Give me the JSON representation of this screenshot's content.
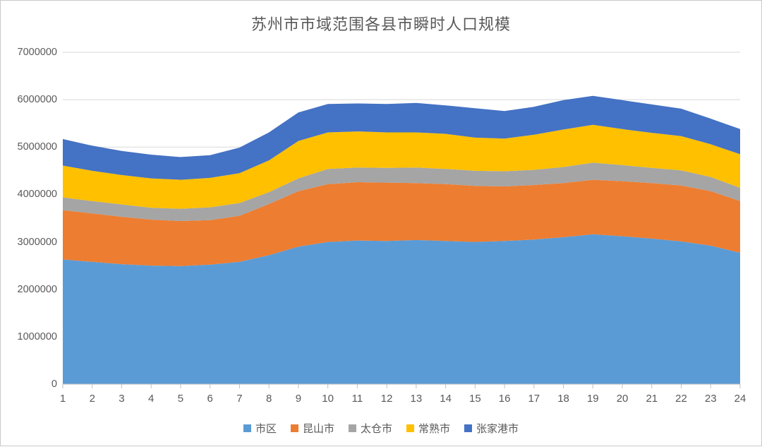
{
  "chart_data": {
    "type": "area",
    "stacked": true,
    "title": "苏州市市域范围各县市瞬时人口规模",
    "xlabel": "",
    "ylabel": "",
    "x": [
      1,
      2,
      3,
      4,
      5,
      6,
      7,
      8,
      9,
      10,
      11,
      12,
      13,
      14,
      15,
      16,
      17,
      18,
      19,
      20,
      21,
      22,
      23,
      24
    ],
    "x_tick_labels": [
      "1",
      "2",
      "3",
      "4",
      "5",
      "6",
      "7",
      "8",
      "9",
      "10",
      "11",
      "12",
      "13",
      "14",
      "15",
      "16",
      "17",
      "18",
      "19",
      "20",
      "21",
      "22",
      "23",
      "24"
    ],
    "ylim": [
      0,
      7000000
    ],
    "ytick_step": 1000000,
    "y_tick_labels": [
      "0",
      "1000000",
      "2000000",
      "3000000",
      "4000000",
      "5000000",
      "6000000",
      "7000000"
    ],
    "grid": true,
    "legend_position": "bottom",
    "series": [
      {
        "name": "市区",
        "slug": "shiqu",
        "color": "#5B9BD5",
        "values": [
          2630000,
          2580000,
          2530000,
          2500000,
          2490000,
          2520000,
          2580000,
          2720000,
          2900000,
          3000000,
          3030000,
          3020000,
          3040000,
          3020000,
          3000000,
          3020000,
          3050000,
          3100000,
          3160000,
          3120000,
          3070000,
          3010000,
          2920000,
          2770000
        ]
      },
      {
        "name": "昆山市",
        "slug": "kunshan",
        "color": "#ED7D31",
        "values": [
          1040000,
          1020000,
          1000000,
          970000,
          950000,
          940000,
          970000,
          1080000,
          1170000,
          1220000,
          1230000,
          1230000,
          1200000,
          1200000,
          1180000,
          1150000,
          1150000,
          1140000,
          1150000,
          1160000,
          1170000,
          1180000,
          1150000,
          1090000
        ]
      },
      {
        "name": "太仓市",
        "slug": "taicang",
        "color": "#A5A5A5",
        "values": [
          270000,
          260000,
          260000,
          250000,
          260000,
          270000,
          270000,
          250000,
          270000,
          320000,
          310000,
          310000,
          330000,
          320000,
          320000,
          320000,
          320000,
          340000,
          360000,
          340000,
          320000,
          320000,
          300000,
          280000
        ]
      },
      {
        "name": "常熟市",
        "slug": "changshu",
        "color": "#FFC000",
        "values": [
          670000,
          640000,
          620000,
          620000,
          610000,
          620000,
          630000,
          670000,
          790000,
          770000,
          760000,
          750000,
          740000,
          740000,
          700000,
          690000,
          740000,
          790000,
          800000,
          760000,
          740000,
          720000,
          690000,
          710000
        ]
      },
      {
        "name": "张家港市",
        "slug": "zhangjiagang",
        "color": "#4472C4",
        "values": [
          560000,
          530000,
          510000,
          500000,
          480000,
          480000,
          540000,
          590000,
          600000,
          600000,
          590000,
          600000,
          620000,
          600000,
          620000,
          580000,
          590000,
          620000,
          610000,
          610000,
          600000,
          580000,
          540000,
          530000
        ]
      }
    ],
    "style": {
      "grid_color": "#D9D9D9",
      "axis_color": "#BFBFBF",
      "text_color": "#595959"
    }
  }
}
